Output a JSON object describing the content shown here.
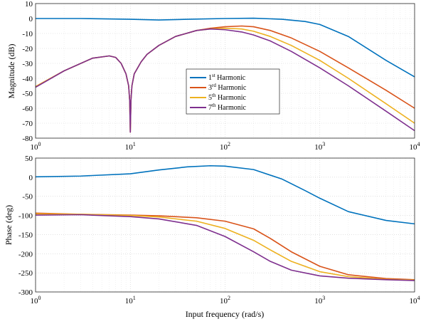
{
  "chart_data": [
    {
      "type": "line",
      "id": "magnitude",
      "xlabel": "",
      "ylabel": "Magnitude (dB)",
      "xscale": "log",
      "xlim": [
        1,
        10000
      ],
      "ylim": [
        -80,
        10
      ],
      "yticks": [
        10,
        0,
        -10,
        -20,
        -30,
        -40,
        -50,
        -60,
        -70,
        -80
      ],
      "xticks": [
        {
          "value": 1,
          "base": "10",
          "exp": "0"
        },
        {
          "value": 10,
          "base": "10",
          "exp": "1"
        },
        {
          "value": 100,
          "base": "10",
          "exp": "2"
        },
        {
          "value": 1000,
          "base": "10",
          "exp": "3"
        },
        {
          "value": 10000,
          "base": "10",
          "exp": "4"
        }
      ],
      "grid": true,
      "legend_position": "center",
      "series": [
        {
          "name": "1st Harmonic",
          "label_num": "1",
          "label_sup": "st",
          "label_rest": " Harmonic",
          "color": "#0072bd",
          "points": [
            [
              1,
              0
            ],
            [
              3,
              0
            ],
            [
              10,
              -0.5
            ],
            [
              20,
              -1
            ],
            [
              40,
              -0.5
            ],
            [
              100,
              0
            ],
            [
              200,
              0.2
            ],
            [
              400,
              -0.5
            ],
            [
              700,
              -2
            ],
            [
              1000,
              -4
            ],
            [
              2000,
              -12
            ],
            [
              5000,
              -28
            ],
            [
              10000,
              -39
            ]
          ]
        },
        {
          "name": "3rd Harmonic",
          "label_num": "3",
          "label_sup": "rd",
          "label_rest": " Harmonic",
          "color": "#d95319",
          "points": [
            [
              1,
              -45.5
            ],
            [
              2,
              -35
            ],
            [
              4,
              -26.5
            ],
            [
              6,
              -25
            ],
            [
              7,
              -26
            ],
            [
              8,
              -30
            ],
            [
              9,
              -37
            ],
            [
              9.6,
              -45
            ],
            [
              9.85,
              -55
            ],
            [
              10,
              -76
            ],
            [
              10.15,
              -55
            ],
            [
              10.4,
              -45
            ],
            [
              11,
              -37
            ],
            [
              13,
              -29
            ],
            [
              15,
              -24
            ],
            [
              20,
              -18
            ],
            [
              30,
              -12
            ],
            [
              50,
              -8
            ],
            [
              70,
              -6.5
            ],
            [
              100,
              -5.5
            ],
            [
              150,
              -5
            ],
            [
              200,
              -5.5
            ],
            [
              300,
              -8
            ],
            [
              500,
              -13
            ],
            [
              1000,
              -22
            ],
            [
              2000,
              -33
            ],
            [
              5000,
              -48
            ],
            [
              10000,
              -60
            ]
          ]
        },
        {
          "name": "5th Harmonic",
          "label_num": "5",
          "label_sup": "th",
          "label_rest": " Harmonic",
          "color": "#edb120",
          "points": [
            [
              1,
              -45.5
            ],
            [
              2,
              -35
            ],
            [
              4,
              -26.5
            ],
            [
              6,
              -25
            ],
            [
              7,
              -26
            ],
            [
              8,
              -30
            ],
            [
              9,
              -37
            ],
            [
              9.6,
              -45
            ],
            [
              9.85,
              -55
            ],
            [
              10,
              -76
            ],
            [
              10.15,
              -55
            ],
            [
              10.4,
              -45
            ],
            [
              11,
              -37
            ],
            [
              13,
              -29
            ],
            [
              15,
              -24
            ],
            [
              20,
              -18
            ],
            [
              30,
              -12
            ],
            [
              50,
              -8
            ],
            [
              70,
              -7
            ],
            [
              100,
              -6.5
            ],
            [
              150,
              -7
            ],
            [
              200,
              -8.5
            ],
            [
              300,
              -12
            ],
            [
              500,
              -18
            ],
            [
              1000,
              -28
            ],
            [
              2000,
              -40
            ],
            [
              5000,
              -57
            ],
            [
              10000,
              -70
            ]
          ]
        },
        {
          "name": "7th Harmonic",
          "label_num": "7",
          "label_sup": "th",
          "label_rest": " Harmonic",
          "color": "#7e2f8e",
          "points": [
            [
              1,
              -46
            ],
            [
              2,
              -35
            ],
            [
              4,
              -26.5
            ],
            [
              6,
              -25
            ],
            [
              7,
              -26
            ],
            [
              8,
              -30
            ],
            [
              9,
              -37
            ],
            [
              9.6,
              -45
            ],
            [
              9.85,
              -55
            ],
            [
              10,
              -76
            ],
            [
              10.15,
              -55
            ],
            [
              10.4,
              -45
            ],
            [
              11,
              -37
            ],
            [
              13,
              -29
            ],
            [
              15,
              -24
            ],
            [
              20,
              -18
            ],
            [
              30,
              -12
            ],
            [
              50,
              -8
            ],
            [
              70,
              -7
            ],
            [
              100,
              -7.5
            ],
            [
              150,
              -9
            ],
            [
              200,
              -11
            ],
            [
              300,
              -15
            ],
            [
              500,
              -22
            ],
            [
              1000,
              -33
            ],
            [
              2000,
              -45
            ],
            [
              5000,
              -62
            ],
            [
              10000,
              -75
            ]
          ]
        }
      ]
    },
    {
      "type": "line",
      "id": "phase",
      "xlabel": "Input frequency (rad/s)",
      "ylabel": "Phase (deg)",
      "xscale": "log",
      "xlim": [
        1,
        10000
      ],
      "ylim": [
        -300,
        50
      ],
      "yticks": [
        50,
        0,
        -50,
        -100,
        -150,
        -200,
        -250,
        -300
      ],
      "xticks": [
        {
          "value": 1,
          "base": "10",
          "exp": "0"
        },
        {
          "value": 10,
          "base": "10",
          "exp": "1"
        },
        {
          "value": 100,
          "base": "10",
          "exp": "2"
        },
        {
          "value": 1000,
          "base": "10",
          "exp": "3"
        },
        {
          "value": 10000,
          "base": "10",
          "exp": "4"
        }
      ],
      "grid": true,
      "series": [
        {
          "name": "1st Harmonic",
          "color": "#0072bd",
          "points": [
            [
              1,
              1
            ],
            [
              3,
              3
            ],
            [
              10,
              9
            ],
            [
              20,
              19
            ],
            [
              40,
              27
            ],
            [
              70,
              30
            ],
            [
              100,
              29
            ],
            [
              200,
              20
            ],
            [
              400,
              -5
            ],
            [
              700,
              -35
            ],
            [
              1000,
              -55
            ],
            [
              2000,
              -90
            ],
            [
              5000,
              -113
            ],
            [
              10000,
              -122
            ]
          ]
        },
        {
          "name": "3rd Harmonic",
          "color": "#d95319",
          "points": [
            [
              1,
              -94
            ],
            [
              3,
              -97
            ],
            [
              10,
              -99
            ],
            [
              20,
              -101
            ],
            [
              50,
              -106
            ],
            [
              100,
              -115
            ],
            [
              200,
              -135
            ],
            [
              300,
              -160
            ],
            [
              500,
              -195
            ],
            [
              1000,
              -233
            ],
            [
              2000,
              -255
            ],
            [
              5000,
              -265
            ],
            [
              10000,
              -268
            ]
          ]
        },
        {
          "name": "5th Harmonic",
          "color": "#edb120",
          "points": [
            [
              1,
              -96
            ],
            [
              3,
              -97
            ],
            [
              10,
              -100
            ],
            [
              20,
              -104
            ],
            [
              50,
              -115
            ],
            [
              100,
              -134
            ],
            [
              200,
              -165
            ],
            [
              300,
              -190
            ],
            [
              500,
              -220
            ],
            [
              1000,
              -247
            ],
            [
              2000,
              -260
            ],
            [
              5000,
              -267
            ],
            [
              10000,
              -269
            ]
          ]
        },
        {
          "name": "7th Harmonic",
          "color": "#7e2f8e",
          "points": [
            [
              1,
              -99
            ],
            [
              3,
              -98
            ],
            [
              10,
              -103
            ],
            [
              20,
              -109
            ],
            [
              50,
              -126
            ],
            [
              100,
              -155
            ],
            [
              200,
              -195
            ],
            [
              300,
              -220
            ],
            [
              500,
              -243
            ],
            [
              1000,
              -258
            ],
            [
              2000,
              -264
            ],
            [
              5000,
              -268
            ],
            [
              10000,
              -270
            ]
          ]
        }
      ]
    }
  ]
}
